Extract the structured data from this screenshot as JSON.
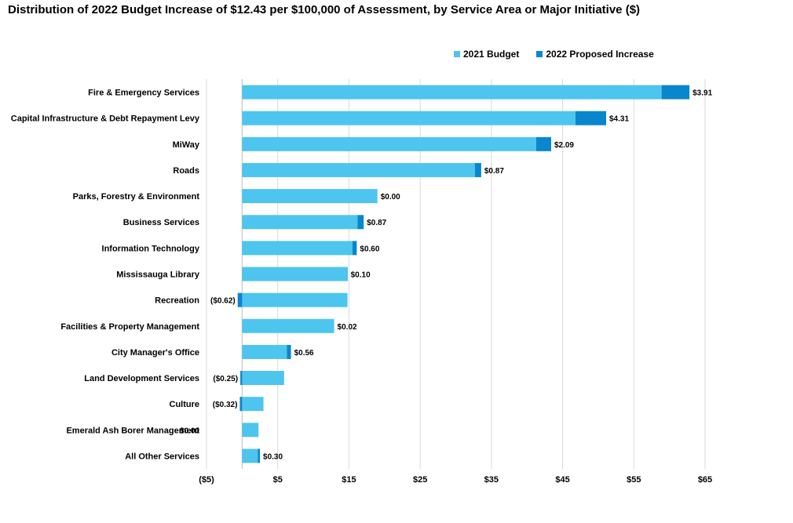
{
  "title": "Distribution of 2022 Budget Increase of $12.43 per $100,000 of Assessment, by Service Area or Major Initiative ($)",
  "legend": {
    "budget_label": "2021 Budget",
    "increase_label": "2022 Proposed Increase"
  },
  "colors": {
    "budget": "#4DC5EE",
    "increase": "#0A86CC",
    "grid": "#D9D9D9",
    "axis": "#BFBFBF"
  },
  "chart_data": {
    "type": "bar",
    "orientation": "horizontal",
    "stacked": true,
    "xlim": [
      -5,
      65
    ],
    "xticks": [
      -5,
      5,
      15,
      25,
      35,
      45,
      55,
      65
    ],
    "xtick_labels": [
      "($5)",
      "$5",
      "$15",
      "$25",
      "$35",
      "$45",
      "$55",
      "$65"
    ],
    "grid": true,
    "legend_position": "top-right",
    "categories": [
      "Fire & Emergency Services",
      "Capital Infrastructure & Debt Repayment Levy",
      "MiWay",
      "Roads",
      "Parks, Forestry & Environment",
      "Business Services",
      "Information Technology",
      "Mississauga Library",
      "Recreation",
      "Facilities & Property Management",
      "City Manager's Office",
      "Land Development Services",
      "Culture",
      "Emerald Ash Borer Management",
      "All Other Services"
    ],
    "series": [
      {
        "name": "2021 Budget",
        "values": [
          58.9,
          46.8,
          41.3,
          32.7,
          19.0,
          16.2,
          15.5,
          14.7,
          14.8,
          12.9,
          6.3,
          5.9,
          3.0,
          2.3,
          2.2
        ]
      },
      {
        "name": "2022 Proposed Increase",
        "values": [
          3.91,
          4.31,
          2.09,
          0.87,
          0.0,
          0.87,
          0.6,
          0.1,
          -0.62,
          0.02,
          0.56,
          -0.25,
          -0.32,
          0.0,
          0.3
        ]
      }
    ],
    "data_labels": [
      "$3.91",
      "$4.31",
      "$2.09",
      "$0.87",
      "$0.00",
      "$0.87",
      "$0.60",
      "$0.10",
      "($0.62)",
      "$0.02",
      "$0.56",
      "($0.25)",
      "($0.32)",
      "$0.00",
      "$0.30"
    ]
  }
}
